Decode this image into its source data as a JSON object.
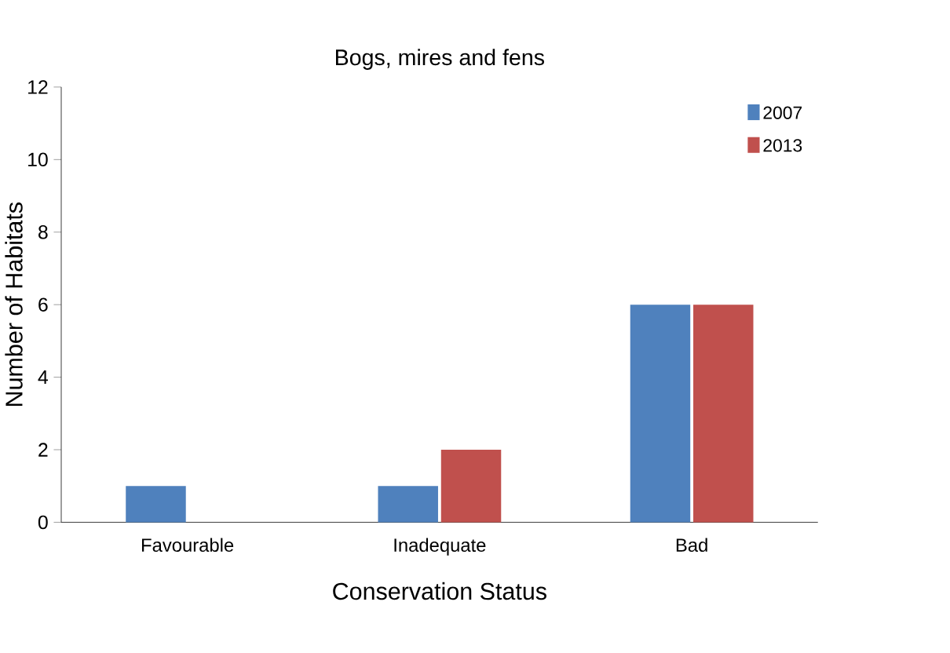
{
  "chart_data": {
    "type": "bar",
    "title": "Bogs, mires and fens",
    "xlabel": "Conservation Status",
    "ylabel": "Number of Habitats",
    "categories": [
      "Favourable",
      "Inadequate",
      "Bad"
    ],
    "series": [
      {
        "name": "2007",
        "color": "#4f81bd",
        "values": [
          1,
          1,
          6
        ]
      },
      {
        "name": "2013",
        "color": "#c0504d",
        "values": [
          0,
          2,
          6
        ]
      }
    ],
    "ylim": [
      0,
      12
    ],
    "yticks": [
      0,
      2,
      4,
      6,
      8,
      10,
      12
    ],
    "legend": "top right",
    "grid": false
  }
}
